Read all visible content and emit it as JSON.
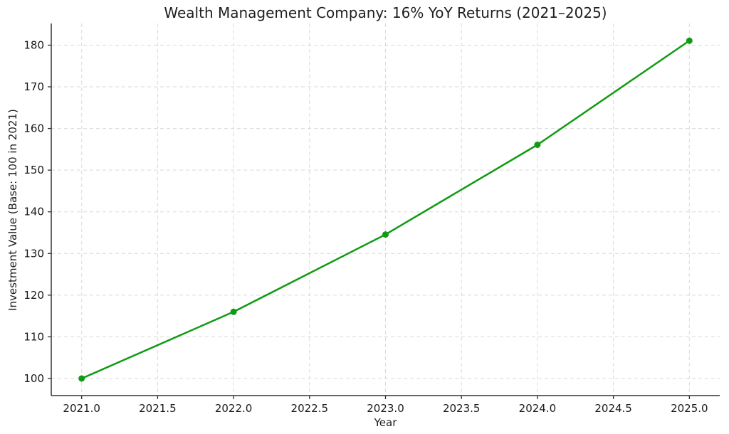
{
  "figure": {
    "background_color": "#ffffff"
  },
  "chart_data": {
    "type": "line",
    "title": "Wealth Management Company: 16% YoY Returns (2021–2025)",
    "xlabel": "Year",
    "ylabel": "Investment Value (Base: 100 in 2021)",
    "x": [
      2021,
      2022,
      2023,
      2024,
      2025
    ],
    "series": [
      {
        "name": "Investment Value",
        "values": [
          100,
          116,
          134.56,
          156.09,
          181.06
        ],
        "color": "#0f9b12",
        "marker": "circle"
      }
    ],
    "xticks": [
      2021.0,
      2021.5,
      2022.0,
      2022.5,
      2023.0,
      2023.5,
      2024.0,
      2024.5,
      2025.0
    ],
    "xtick_labels": [
      "2021.0",
      "2021.5",
      "2022.0",
      "2022.5",
      "2023.0",
      "2023.5",
      "2024.0",
      "2024.5",
      "2025.0"
    ],
    "yticks": [
      100,
      110,
      120,
      130,
      140,
      150,
      160,
      170,
      180
    ],
    "ytick_labels": [
      "100",
      "110",
      "120",
      "130",
      "140",
      "150",
      "160",
      "170",
      "180"
    ],
    "xlim": [
      2020.8,
      2025.2
    ],
    "ylim": [
      95.9,
      185.2
    ],
    "grid": true,
    "grid_style": "dashed",
    "grid_color": "#d9d9d9",
    "axis_color": "#333333",
    "text_color": "#1a1a1a",
    "legend": "none",
    "spines": [
      "left",
      "bottom"
    ]
  }
}
